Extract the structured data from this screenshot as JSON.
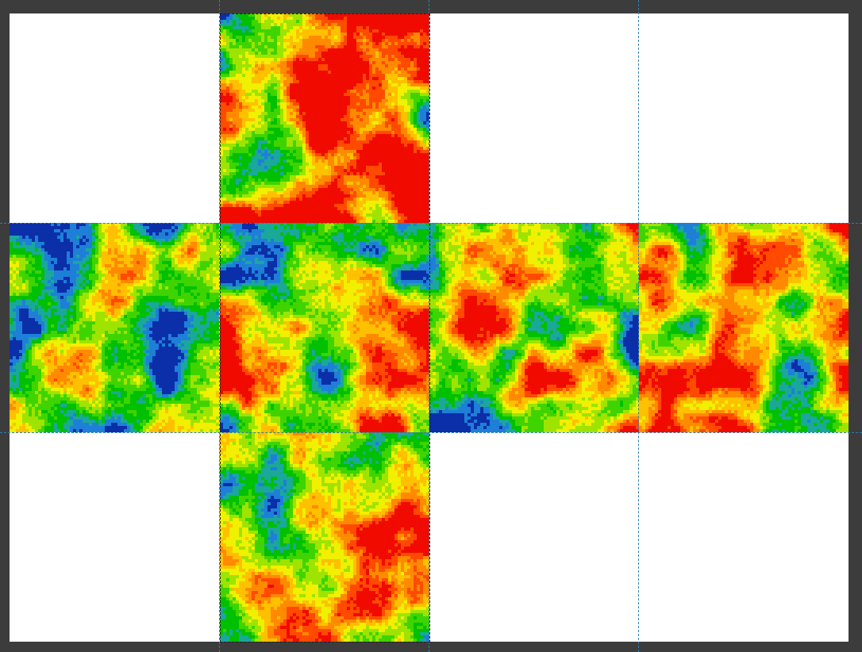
{
  "canvas": {
    "background": "#3c3c3c",
    "paper_color": "#ffffff",
    "guide_color": "#2f7fae"
  },
  "heightmap": {
    "palette": [
      "#0b2fa8",
      "#1e7fd8",
      "#1aa89a",
      "#00c000",
      "#3fd400",
      "#9ee400",
      "#f0f000",
      "#ffc000",
      "#ff8a00",
      "#ff4a00",
      "#f00a00"
    ],
    "faces": [
      {
        "id": "top",
        "tint": 0.62,
        "seed": 11
      },
      {
        "id": "left",
        "tint": 0.42,
        "seed": 23
      },
      {
        "id": "front",
        "tint": 0.56,
        "seed": 37
      },
      {
        "id": "right",
        "tint": 0.52,
        "seed": 41
      },
      {
        "id": "back",
        "tint": 0.55,
        "seed": 53
      },
      {
        "id": "bottom",
        "tint": 0.58,
        "seed": 67
      }
    ]
  }
}
